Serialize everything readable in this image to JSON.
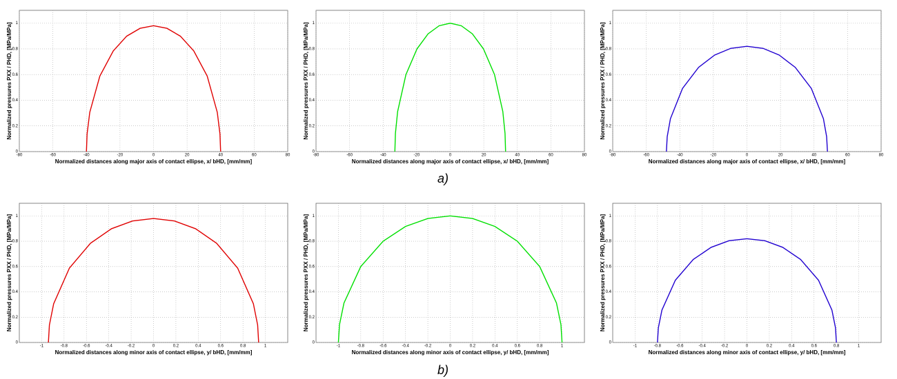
{
  "chart_data": [
    {
      "type": "line",
      "xlabel": "Normalized distances along major axis of contact ellipse,  x/ bHD, [mm/mm]",
      "ylabel": "Normalized pressures PXX / PHD, [MPa/MPa]",
      "color": "#e00000",
      "x": [
        -40,
        -39.6,
        -38,
        -32,
        -24,
        -16,
        -8,
        0,
        8,
        16,
        24,
        32,
        38,
        39.6,
        40
      ],
      "values": [
        0,
        0.138,
        0.306,
        0.588,
        0.784,
        0.899,
        0.96,
        0.98,
        0.96,
        0.899,
        0.784,
        0.588,
        0.306,
        0.138,
        0
      ],
      "xlim": [
        -80,
        80
      ],
      "xticks": [
        -80,
        -60,
        -40,
        -20,
        0,
        20,
        40,
        60,
        80
      ],
      "ylim": [
        0,
        1.1
      ],
      "yticks": [
        0,
        0.2,
        0.4,
        0.6,
        0.8,
        1
      ],
      "grid": true
    },
    {
      "type": "line",
      "xlabel": "Normalized distances along major axis of contact ellipse,  x/ bHD, [mm/mm]",
      "ylabel": "Normalized pressures PXX / PHD, [MPa/MPa]",
      "color": "#00e000",
      "x": [
        -33,
        -32.67,
        -31.35,
        -26.4,
        -19.8,
        -13.2,
        -6.6,
        0,
        6.6,
        13.2,
        19.8,
        26.4,
        31.35,
        32.67,
        33
      ],
      "values": [
        0,
        0.141,
        0.312,
        0.6,
        0.8,
        0.917,
        0.98,
        1,
        0.98,
        0.917,
        0.8,
        0.6,
        0.312,
        0.141,
        0
      ],
      "xlim": [
        -80,
        80
      ],
      "xticks": [
        -80,
        -60,
        -40,
        -20,
        0,
        20,
        40,
        60,
        80
      ],
      "ylim": [
        0,
        1.1
      ],
      "yticks": [
        0,
        0.2,
        0.4,
        0.6,
        0.8,
        1
      ],
      "grid": true
    },
    {
      "type": "line",
      "xlabel": "Normalized distances along major axis of contact ellipse,  x/ bHD, [mm/mm]",
      "ylabel": "Normalized pressures PXX / PHD, [MPa/MPa]",
      "color": "#2000d0",
      "x": [
        -48,
        -47.52,
        -45.6,
        -38.4,
        -28.8,
        -19.2,
        -9.6,
        0,
        9.6,
        19.2,
        28.8,
        38.4,
        45.6,
        47.52,
        48
      ],
      "values": [
        0,
        0.116,
        0.256,
        0.492,
        0.656,
        0.752,
        0.804,
        0.82,
        0.804,
        0.752,
        0.656,
        0.492,
        0.256,
        0.116,
        0
      ],
      "xlim": [
        -80,
        80
      ],
      "xticks": [
        -80,
        -60,
        -40,
        -20,
        0,
        20,
        40,
        60,
        80
      ],
      "ylim": [
        0,
        1.1
      ],
      "yticks": [
        0,
        0.2,
        0.4,
        0.6,
        0.8,
        1
      ],
      "grid": true
    },
    {
      "type": "line",
      "xlabel": "Normalized distances along minor axis of contact ellipse,  y/ bHD, [mm/mm]",
      "ylabel": "Normalized pressures PXX / PHD, [MPa/MPa]",
      "color": "#e00000",
      "x": [
        -0.94,
        -0.931,
        -0.893,
        -0.752,
        -0.564,
        -0.376,
        -0.188,
        0,
        0.188,
        0.376,
        0.564,
        0.752,
        0.893,
        0.931,
        0.94
      ],
      "values": [
        0,
        0.138,
        0.306,
        0.588,
        0.784,
        0.899,
        0.96,
        0.98,
        0.96,
        0.899,
        0.784,
        0.588,
        0.306,
        0.138,
        0
      ],
      "xlim": [
        -1.2,
        1.2
      ],
      "xticks": [
        -1,
        -0.8,
        -0.6,
        -0.4,
        -0.2,
        0,
        0.2,
        0.4,
        0.6,
        0.8,
        1
      ],
      "ylim": [
        0,
        1.1
      ],
      "yticks": [
        0,
        0.2,
        0.4,
        0.6,
        0.8,
        1
      ],
      "grid": true
    },
    {
      "type": "line",
      "xlabel": "Normalized distances along minor axis of contact ellipse,  y/ bHD, [mm/mm]",
      "ylabel": "Normalized pressures PXX / PHD, [MPa/MPa]",
      "color": "#00e000",
      "x": [
        -1,
        -0.99,
        -0.95,
        -0.8,
        -0.6,
        -0.4,
        -0.2,
        0,
        0.2,
        0.4,
        0.6,
        0.8,
        0.95,
        0.99,
        1
      ],
      "values": [
        0,
        0.141,
        0.312,
        0.6,
        0.8,
        0.917,
        0.98,
        1,
        0.98,
        0.917,
        0.8,
        0.6,
        0.312,
        0.141,
        0
      ],
      "xlim": [
        -1.2,
        1.2
      ],
      "xticks": [
        -1,
        -0.8,
        -0.6,
        -0.4,
        -0.2,
        0,
        0.2,
        0.4,
        0.6,
        0.8,
        1
      ],
      "ylim": [
        0,
        1.1
      ],
      "yticks": [
        0,
        0.2,
        0.4,
        0.6,
        0.8,
        1
      ],
      "grid": true
    },
    {
      "type": "line",
      "xlabel": "Normalized distances along minor axis of contact ellipse,  y/ bHD, [mm/mm]",
      "ylabel": "Normalized pressures PXX / PHD, [MPa/MPa]",
      "color": "#2000d0",
      "x": [
        -0.8,
        -0.792,
        -0.76,
        -0.64,
        -0.48,
        -0.32,
        -0.16,
        0,
        0.16,
        0.32,
        0.48,
        0.64,
        0.76,
        0.792,
        0.8
      ],
      "values": [
        0,
        0.116,
        0.256,
        0.492,
        0.656,
        0.752,
        0.804,
        0.82,
        0.804,
        0.752,
        0.656,
        0.492,
        0.256,
        0.116,
        0
      ],
      "xlim": [
        -1.2,
        1.2
      ],
      "xticks": [
        -1,
        -0.8,
        -0.6,
        -0.4,
        -0.2,
        0,
        0.2,
        0.4,
        0.6,
        0.8,
        1
      ],
      "ylim": [
        0,
        1.1
      ],
      "yticks": [
        0,
        0.2,
        0.4,
        0.6,
        0.8,
        1
      ],
      "grid": true
    }
  ],
  "captions": [
    "a)",
    "b)"
  ]
}
